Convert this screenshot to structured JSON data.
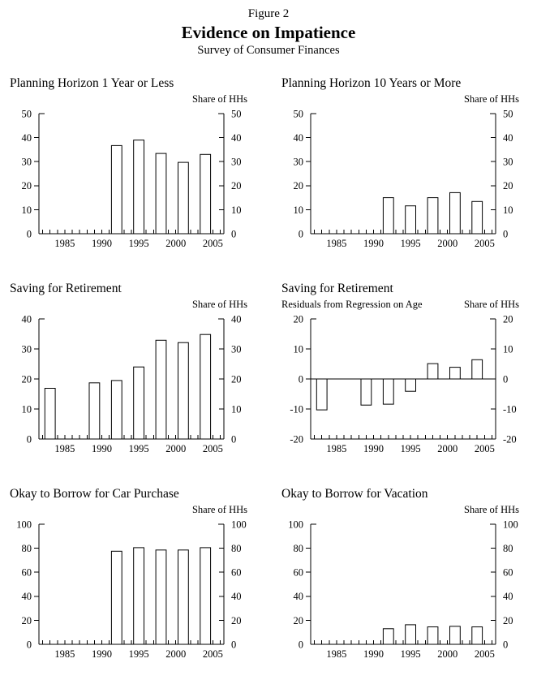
{
  "header": {
    "figure_label": "Figure 2",
    "title": "Evidence on Impatience",
    "subtitle": "Survey of Consumer Finances"
  },
  "colors": {
    "foreground": "#000000",
    "background": "#ffffff",
    "bar_fill": "#ffffff",
    "bar_stroke": "#000000"
  },
  "chart_data": [
    {
      "type": "bar",
      "title": "Planning Horizon 1 Year or Less",
      "subtitle": "",
      "unit_label": "Share of HHs",
      "ylim": [
        0,
        50
      ],
      "yticks": [
        0,
        10,
        20,
        30,
        40,
        50
      ],
      "xlim": [
        1981.5,
        2006.5
      ],
      "xticks_labeled": [
        1985,
        1990,
        1995,
        2000,
        2005
      ],
      "xtick_interval": 1,
      "zero_line": false,
      "years": [
        1992,
        1995,
        1998,
        2001,
        2004
      ],
      "values": [
        36.7,
        39.0,
        33.4,
        29.7,
        33.0
      ]
    },
    {
      "type": "bar",
      "title": "Planning Horizon 10 Years or More",
      "subtitle": "",
      "unit_label": "Share of HHs",
      "ylim": [
        0,
        50
      ],
      "yticks": [
        0,
        10,
        20,
        30,
        40,
        50
      ],
      "xlim": [
        1981.5,
        2006.5
      ],
      "xticks_labeled": [
        1985,
        1990,
        1995,
        2000,
        2005
      ],
      "xtick_interval": 1,
      "zero_line": false,
      "years": [
        1992,
        1995,
        1998,
        2001,
        2004
      ],
      "values": [
        15.0,
        11.6,
        15.0,
        17.1,
        13.4
      ]
    },
    {
      "type": "bar",
      "title": "Saving for Retirement",
      "subtitle": "",
      "unit_label": "Share of HHs",
      "ylim": [
        0,
        40
      ],
      "yticks": [
        0,
        10,
        20,
        30,
        40
      ],
      "xlim": [
        1981.5,
        2006.5
      ],
      "xticks_labeled": [
        1985,
        1990,
        1995,
        2000,
        2005
      ],
      "xtick_interval": 1,
      "zero_line": false,
      "years": [
        1983,
        1989,
        1992,
        1995,
        1998,
        2001,
        2004
      ],
      "values": [
        16.9,
        18.7,
        19.5,
        24.0,
        32.9,
        32.1,
        34.8
      ]
    },
    {
      "type": "bar",
      "title": "Saving for Retirement",
      "subtitle": "Residuals from Regression on Age",
      "unit_label": "Share of HHs",
      "ylim": [
        -20,
        20
      ],
      "yticks": [
        -20,
        -10,
        0,
        10,
        20
      ],
      "xlim": [
        1981.5,
        2006.5
      ],
      "xticks_labeled": [
        1985,
        1990,
        1995,
        2000,
        2005
      ],
      "xtick_interval": 1,
      "zero_line": true,
      "years": [
        1983,
        1989,
        1992,
        1995,
        1998,
        2001,
        2004
      ],
      "values": [
        -10.3,
        -8.7,
        -8.4,
        -4.1,
        5.1,
        3.9,
        6.4
      ]
    },
    {
      "type": "bar",
      "title": "Okay to Borrow for Car Purchase",
      "subtitle": "",
      "unit_label": "Share of HHs",
      "ylim": [
        0,
        100
      ],
      "yticks": [
        0,
        20,
        40,
        60,
        80,
        100
      ],
      "xlim": [
        1981.5,
        2006.5
      ],
      "xticks_labeled": [
        1985,
        1990,
        1995,
        2000,
        2005
      ],
      "xtick_interval": 1,
      "zero_line": false,
      "years": [
        1992,
        1995,
        1998,
        2001,
        2004
      ],
      "values": [
        77.5,
        80.5,
        78.5,
        78.5,
        80.5
      ]
    },
    {
      "type": "bar",
      "title": "Okay to Borrow for Vacation",
      "subtitle": "",
      "unit_label": "Share of HHs",
      "ylim": [
        0,
        100
      ],
      "yticks": [
        0,
        20,
        40,
        60,
        80,
        100
      ],
      "xlim": [
        1981.5,
        2006.5
      ],
      "xticks_labeled": [
        1985,
        1990,
        1995,
        2000,
        2005
      ],
      "xtick_interval": 1,
      "zero_line": false,
      "years": [
        1992,
        1995,
        1998,
        2001,
        2004
      ],
      "values": [
        13.0,
        16.3,
        14.5,
        15.0,
        14.5
      ]
    }
  ]
}
